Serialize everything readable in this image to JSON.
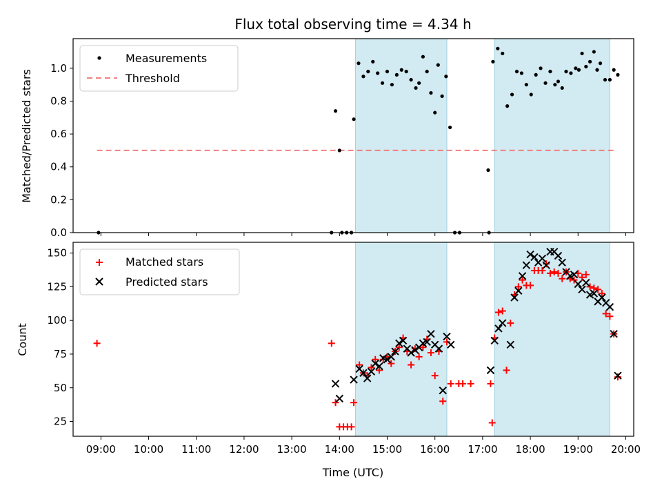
{
  "chart_data": {
    "title": "Flux total observing time = 4.34 h",
    "xlabel": "Time (UTC)",
    "x_ticks": [
      "09:00",
      "10:00",
      "11:00",
      "12:00",
      "13:00",
      "14:00",
      "15:00",
      "16:00",
      "17:00",
      "18:00",
      "19:00",
      "20:00"
    ],
    "x_range": [
      "08:25",
      "20:10"
    ],
    "shaded_intervals": [
      [
        "14:20",
        "16:15"
      ],
      [
        "17:15",
        "19:40"
      ]
    ],
    "shade_color": "#add8e6",
    "panels": [
      {
        "type": "scatter",
        "ylabel": "Matched/Predicted stars",
        "ylim": [
          0,
          1.18
        ],
        "y_ticks": [
          "0.0",
          "0.2",
          "0.4",
          "0.6",
          "0.8",
          "1.0"
        ],
        "legend_position": "top-left",
        "series": [
          {
            "name": "Measurements",
            "marker": "dot",
            "color": "#000000",
            "points": [
              [
                "08:57",
                0.0
              ],
              [
                "13:50",
                0.0
              ],
              [
                "13:55",
                0.74
              ],
              [
                "14:00",
                0.5
              ],
              [
                "14:03",
                0.0
              ],
              [
                "14:09",
                0.0
              ],
              [
                "14:15",
                0.0
              ],
              [
                "14:18",
                0.69
              ],
              [
                "14:24",
                1.03
              ],
              [
                "14:30",
                0.95
              ],
              [
                "14:36",
                0.98
              ],
              [
                "14:42",
                1.04
              ],
              [
                "14:48",
                0.97
              ],
              [
                "14:54",
                0.91
              ],
              [
                "15:00",
                0.98
              ],
              [
                "15:06",
                0.9
              ],
              [
                "15:12",
                0.96
              ],
              [
                "15:18",
                0.99
              ],
              [
                "15:24",
                0.98
              ],
              [
                "15:30",
                0.93
              ],
              [
                "15:36",
                0.88
              ],
              [
                "15:40",
                0.91
              ],
              [
                "15:45",
                1.07
              ],
              [
                "15:50",
                0.98
              ],
              [
                "15:55",
                0.85
              ],
              [
                "16:00",
                0.73
              ],
              [
                "16:04",
                1.02
              ],
              [
                "16:09",
                0.83
              ],
              [
                "16:14",
                0.95
              ],
              [
                "16:19",
                0.64
              ],
              [
                "16:25",
                0.0
              ],
              [
                "16:31",
                0.0
              ],
              [
                "17:07",
                0.38
              ],
              [
                "17:08",
                0.0
              ],
              [
                "17:13",
                1.04
              ],
              [
                "17:19",
                1.12
              ],
              [
                "17:25",
                1.09
              ],
              [
                "17:31",
                0.77
              ],
              [
                "17:37",
                0.84
              ],
              [
                "17:43",
                0.98
              ],
              [
                "17:49",
                0.97
              ],
              [
                "17:55",
                0.9
              ],
              [
                "18:01",
                0.84
              ],
              [
                "18:07",
                0.96
              ],
              [
                "18:13",
                1.0
              ],
              [
                "18:19",
                0.91
              ],
              [
                "18:25",
                0.98
              ],
              [
                "18:31",
                0.9
              ],
              [
                "18:35",
                0.92
              ],
              [
                "18:40",
                0.88
              ],
              [
                "18:45",
                0.98
              ],
              [
                "18:51",
                0.97
              ],
              [
                "18:57",
                1.0
              ],
              [
                "19:01",
                0.99
              ],
              [
                "19:05",
                1.09
              ],
              [
                "19:10",
                1.01
              ],
              [
                "19:15",
                1.04
              ],
              [
                "19:20",
                1.1
              ],
              [
                "19:24",
                0.99
              ],
              [
                "19:28",
                1.03
              ],
              [
                "19:34",
                0.93
              ],
              [
                "19:40",
                0.93
              ],
              [
                "19:45",
                0.99
              ],
              [
                "19:50",
                0.96
              ]
            ]
          },
          {
            "name": "Threshold",
            "marker": "dashed-line",
            "color": "#f08080",
            "points": [
              [
                "08:55",
                0.5
              ],
              [
                "19:45",
                0.5
              ]
            ]
          }
        ]
      },
      {
        "type": "scatter",
        "ylabel": "Count",
        "ylim": [
          14,
          158
        ],
        "y_ticks": [
          "25",
          "50",
          "75",
          "100",
          "125",
          "150"
        ],
        "legend_position": "top-left",
        "series": [
          {
            "name": "Matched stars",
            "marker": "plus",
            "color": "#ff0000",
            "points": [
              [
                "08:55",
                83
              ],
              [
                "13:50",
                83
              ],
              [
                "13:55",
                39
              ],
              [
                "14:00",
                21
              ],
              [
                "14:05",
                21
              ],
              [
                "14:10",
                21
              ],
              [
                "14:15",
                21
              ],
              [
                "14:18",
                39
              ],
              [
                "14:25",
                67
              ],
              [
                "14:30",
                61
              ],
              [
                "14:35",
                59
              ],
              [
                "14:40",
                65
              ],
              [
                "14:45",
                71
              ],
              [
                "14:50",
                63
              ],
              [
                "14:55",
                71
              ],
              [
                "15:00",
                73
              ],
              [
                "15:05",
                68
              ],
              [
                "15:10",
                77
              ],
              [
                "15:15",
                80
              ],
              [
                "15:20",
                87
              ],
              [
                "15:25",
                77
              ],
              [
                "15:30",
                67
              ],
              [
                "15:35",
                79
              ],
              [
                "15:40",
                73
              ],
              [
                "15:45",
                80
              ],
              [
                "15:50",
                86
              ],
              [
                "15:55",
                76
              ],
              [
                "16:00",
                59
              ],
              [
                "16:05",
                77
              ],
              [
                "16:10",
                40
              ],
              [
                "16:15",
                84
              ],
              [
                "16:20",
                53
              ],
              [
                "16:30",
                53
              ],
              [
                "16:35",
                53
              ],
              [
                "16:45",
                53
              ],
              [
                "17:10",
                53
              ],
              [
                "17:12",
                24
              ],
              [
                "17:15",
                87
              ],
              [
                "17:20",
                106
              ],
              [
                "17:25",
                107
              ],
              [
                "17:30",
                63
              ],
              [
                "17:35",
                98
              ],
              [
                "17:40",
                119
              ],
              [
                "17:45",
                125
              ],
              [
                "17:50",
                130
              ],
              [
                "17:55",
                126
              ],
              [
                "18:00",
                126
              ],
              [
                "18:05",
                137
              ],
              [
                "18:10",
                137
              ],
              [
                "18:15",
                137
              ],
              [
                "18:20",
                142
              ],
              [
                "18:25",
                135
              ],
              [
                "18:30",
                136
              ],
              [
                "18:35",
                135
              ],
              [
                "18:40",
                131
              ],
              [
                "18:45",
                136
              ],
              [
                "18:50",
                131
              ],
              [
                "18:55",
                130
              ],
              [
                "19:00",
                135
              ],
              [
                "19:05",
                132
              ],
              [
                "19:10",
                134
              ],
              [
                "19:15",
                125
              ],
              [
                "19:20",
                124
              ],
              [
                "19:25",
                123
              ],
              [
                "19:30",
                120
              ],
              [
                "19:35",
                105
              ],
              [
                "19:40",
                103
              ],
              [
                "19:45",
                90
              ],
              [
                "19:50",
                58
              ]
            ]
          },
          {
            "name": "Predicted stars",
            "marker": "cross",
            "color": "#000000",
            "points": [
              [
                "13:55",
                53
              ],
              [
                "14:00",
                42
              ],
              [
                "14:18",
                56
              ],
              [
                "14:25",
                64
              ],
              [
                "14:30",
                61
              ],
              [
                "14:35",
                57
              ],
              [
                "14:40",
                62
              ],
              [
                "14:45",
                68
              ],
              [
                "14:50",
                66
              ],
              [
                "14:55",
                72
              ],
              [
                "15:00",
                71
              ],
              [
                "15:05",
                73
              ],
              [
                "15:10",
                77
              ],
              [
                "15:15",
                83
              ],
              [
                "15:20",
                85
              ],
              [
                "15:25",
                79
              ],
              [
                "15:30",
                76
              ],
              [
                "15:35",
                78
              ],
              [
                "15:40",
                80
              ],
              [
                "15:45",
                83
              ],
              [
                "15:50",
                84
              ],
              [
                "15:55",
                90
              ],
              [
                "16:00",
                82
              ],
              [
                "16:05",
                79
              ],
              [
                "16:10",
                48
              ],
              [
                "16:15",
                88
              ],
              [
                "16:20",
                82
              ],
              [
                "17:10",
                63
              ],
              [
                "17:15",
                85
              ],
              [
                "17:20",
                94
              ],
              [
                "17:25",
                98
              ],
              [
                "17:35",
                82
              ],
              [
                "17:40",
                117
              ],
              [
                "17:45",
                122
              ],
              [
                "17:50",
                133
              ],
              [
                "17:55",
                141
              ],
              [
                "18:00",
                149
              ],
              [
                "18:05",
                147
              ],
              [
                "18:10",
                143
              ],
              [
                "18:15",
                146
              ],
              [
                "18:20",
                141
              ],
              [
                "18:25",
                151
              ],
              [
                "18:30",
                151
              ],
              [
                "18:35",
                148
              ],
              [
                "18:40",
                143
              ],
              [
                "18:45",
                136
              ],
              [
                "18:50",
                133
              ],
              [
                "18:55",
                134
              ],
              [
                "19:00",
                127
              ],
              [
                "19:05",
                123
              ],
              [
                "19:10",
                128
              ],
              [
                "19:15",
                119
              ],
              [
                "19:20",
                120
              ],
              [
                "19:25",
                114
              ],
              [
                "19:30",
                117
              ],
              [
                "19:35",
                113
              ],
              [
                "19:40",
                110
              ],
              [
                "19:45",
                90
              ],
              [
                "19:50",
                59
              ]
            ]
          }
        ]
      }
    ]
  }
}
